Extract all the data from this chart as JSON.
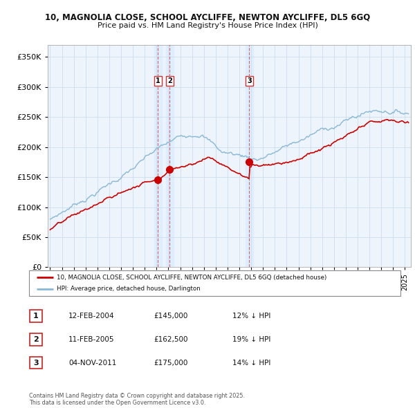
{
  "title_line1": "10, MAGNOLIA CLOSE, SCHOOL AYCLIFFE, NEWTON AYCLIFFE, DL5 6GQ",
  "title_line2": "Price paid vs. HM Land Registry's House Price Index (HPI)",
  "ylim": [
    0,
    370000
  ],
  "yticks": [
    0,
    50000,
    100000,
    150000,
    200000,
    250000,
    300000,
    350000
  ],
  "sale_prices": [
    145000,
    162500,
    175000
  ],
  "sale_labels": [
    "1",
    "2",
    "3"
  ],
  "sale_date_nums": [
    2004.12,
    2005.12,
    2011.84
  ],
  "vline_color": "#dd5555",
  "red_line_color": "#cc0000",
  "blue_line_color": "#88b8d8",
  "shading_color": "#ddeeff",
  "legend_label_red": "10, MAGNOLIA CLOSE, SCHOOL AYCLIFFE, NEWTON AYCLIFFE, DL5 6GQ (detached house)",
  "legend_label_blue": "HPI: Average price, detached house, Darlington",
  "table_entries": [
    {
      "num": "1",
      "date": "12-FEB-2004",
      "price": "£145,000",
      "pct": "12% ↓ HPI"
    },
    {
      "num": "2",
      "date": "11-FEB-2005",
      "price": "£162,500",
      "pct": "19% ↓ HPI"
    },
    {
      "num": "3",
      "date": "04-NOV-2011",
      "price": "£175,000",
      "pct": "14% ↓ HPI"
    }
  ],
  "footer": "Contains HM Land Registry data © Crown copyright and database right 2025.\nThis data is licensed under the Open Government Licence v3.0.",
  "background_color": "#ffffff",
  "plot_bg_color": "#eef4fb",
  "grid_color": "#ccddee"
}
